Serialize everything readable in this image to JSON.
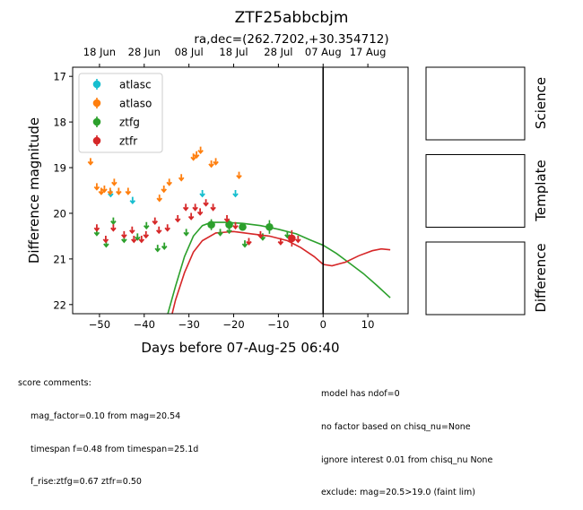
{
  "chart_data": {
    "type": "scatter",
    "title": "ZTF25abbcbjm",
    "subtitle": "ra,dec=(262.7202,+30.354712)",
    "xlabel": "Days before 07-Aug-25 06:40",
    "ylabel": "Difference magnitude",
    "xlim": [
      -56,
      19
    ],
    "ylim": [
      22.2,
      16.8
    ],
    "y_inverted": true,
    "x_ticks": [
      -50,
      -40,
      -30,
      -20,
      -10,
      0,
      10
    ],
    "y_ticks": [
      17,
      18,
      19,
      20,
      21,
      22
    ],
    "top_axis": {
      "ticks": [
        {
          "x": -50,
          "label": "18 Jun"
        },
        {
          "x": -40,
          "label": "28 Jun"
        },
        {
          "x": -30,
          "label": "08 Jul"
        },
        {
          "x": -20,
          "label": "18 Jul"
        },
        {
          "x": -10,
          "label": "28 Jul"
        },
        {
          "x": 0,
          "label": "07 Aug"
        },
        {
          "x": 10,
          "label": "17 Aug"
        }
      ]
    },
    "vline_x": 0,
    "legend_position": "upper left",
    "colors": {
      "atlasc": "#17becf",
      "atlaso": "#ff7f0e",
      "ztfg": "#2ca02c",
      "ztfr": "#d62728"
    },
    "series": [
      {
        "name": "atlasc",
        "upper_limits": [
          [
            -47.5,
            19.55
          ],
          [
            -42.6,
            19.7
          ],
          [
            -27.0,
            19.55
          ],
          [
            -19.6,
            19.55
          ]
        ],
        "detections": []
      },
      {
        "name": "atlaso",
        "upper_limits": [
          [
            -52.0,
            18.85
          ],
          [
            -50.6,
            19.4
          ],
          [
            -49.6,
            19.5
          ],
          [
            -48.9,
            19.45
          ],
          [
            -47.6,
            19.5
          ],
          [
            -46.7,
            19.3
          ],
          [
            -45.7,
            19.5
          ],
          [
            -43.6,
            19.5
          ],
          [
            -36.6,
            19.65
          ],
          [
            -35.6,
            19.45
          ],
          [
            -34.4,
            19.3
          ],
          [
            -31.7,
            19.2
          ],
          [
            -29.0,
            18.75
          ],
          [
            -28.3,
            18.7
          ],
          [
            -27.4,
            18.6
          ],
          [
            -25.0,
            18.9
          ],
          [
            -24.0,
            18.85
          ],
          [
            -18.8,
            19.15
          ]
        ],
        "detections": []
      },
      {
        "name": "ztfg",
        "upper_limits": [
          [
            -50.6,
            20.4
          ],
          [
            -48.5,
            20.65
          ],
          [
            -46.9,
            20.15
          ],
          [
            -44.5,
            20.55
          ],
          [
            -41.5,
            20.5
          ],
          [
            -39.5,
            20.25
          ],
          [
            -37.0,
            20.75
          ],
          [
            -35.5,
            20.7
          ],
          [
            -30.6,
            20.4
          ],
          [
            -23.0,
            20.4
          ],
          [
            -21.0,
            20.35
          ],
          [
            -17.5,
            20.65
          ],
          [
            -13.5,
            20.5
          ],
          [
            -8.0,
            20.45
          ]
        ],
        "detections": [
          {
            "x": -25.0,
            "y": 20.25,
            "err": 0.12
          },
          {
            "x": -21.0,
            "y": 20.25,
            "err": 0.1
          },
          {
            "x": -18.0,
            "y": 20.3,
            "err": 0.08
          },
          {
            "x": -12.0,
            "y": 20.3,
            "err": 0.15
          }
        ]
      },
      {
        "name": "ztfr",
        "upper_limits": [
          [
            -50.6,
            20.3
          ],
          [
            -48.6,
            20.55
          ],
          [
            -46.9,
            20.3
          ],
          [
            -44.5,
            20.45
          ],
          [
            -42.7,
            20.35
          ],
          [
            -42.3,
            20.55
          ],
          [
            -40.6,
            20.55
          ],
          [
            -39.6,
            20.45
          ],
          [
            -37.6,
            20.15
          ],
          [
            -36.7,
            20.35
          ],
          [
            -34.8,
            20.3
          ],
          [
            -32.5,
            20.1
          ],
          [
            -30.7,
            19.85
          ],
          [
            -29.5,
            20.05
          ],
          [
            -28.6,
            19.85
          ],
          [
            -27.5,
            19.95
          ],
          [
            -26.2,
            19.75
          ],
          [
            -24.6,
            19.85
          ],
          [
            -21.5,
            20.1
          ],
          [
            -19.6,
            20.25
          ],
          [
            -16.6,
            20.6
          ],
          [
            -14.0,
            20.45
          ],
          [
            -9.5,
            20.6
          ],
          [
            -5.6,
            20.55
          ]
        ],
        "detections": [
          {
            "x": -7.0,
            "y": 20.55,
            "err": 0.18
          }
        ]
      }
    ],
    "fit_curves": [
      {
        "band": "ztfg",
        "points": [
          [
            -35,
            22.3
          ],
          [
            -33,
            21.6
          ],
          [
            -31,
            20.95
          ],
          [
            -29,
            20.5
          ],
          [
            -27,
            20.27
          ],
          [
            -25,
            20.2
          ],
          [
            -22,
            20.2
          ],
          [
            -18,
            20.22
          ],
          [
            -14,
            20.27
          ],
          [
            -10,
            20.35
          ],
          [
            -6,
            20.45
          ],
          [
            -3,
            20.58
          ],
          [
            0,
            20.7
          ],
          [
            3,
            20.88
          ],
          [
            6,
            21.1
          ],
          [
            9,
            21.32
          ],
          [
            12,
            21.58
          ],
          [
            15,
            21.85
          ]
        ]
      },
      {
        "band": "ztfr",
        "points": [
          [
            -34,
            22.3
          ],
          [
            -33,
            21.9
          ],
          [
            -31,
            21.3
          ],
          [
            -29,
            20.85
          ],
          [
            -27,
            20.6
          ],
          [
            -24,
            20.43
          ],
          [
            -20,
            20.4
          ],
          [
            -16,
            20.45
          ],
          [
            -12,
            20.5
          ],
          [
            -8,
            20.6
          ],
          [
            -5,
            20.75
          ],
          [
            -2,
            20.95
          ],
          [
            0,
            21.12
          ],
          [
            2,
            21.15
          ],
          [
            5,
            21.07
          ],
          [
            8,
            20.93
          ],
          [
            11,
            20.82
          ],
          [
            13,
            20.78
          ],
          [
            15,
            20.8
          ]
        ]
      }
    ],
    "stamp_panels": [
      "Science",
      "Template",
      "Difference"
    ]
  },
  "comments_left": {
    "header": "score comments:",
    "lines": [
      "mag_factor=0.10 from mag=20.54",
      "timespan f=0.48 from timespan=25.1d",
      "f_rise:ztfg=0.67 ztfr=0.50"
    ]
  },
  "comments_right": {
    "lines": [
      "model has ndof=0",
      "no factor based on chisq_nu=None",
      "ignore interest 0.01 from chisq_nu None",
      "exclude: mag=20.5>19.0 (faint lim)"
    ]
  }
}
